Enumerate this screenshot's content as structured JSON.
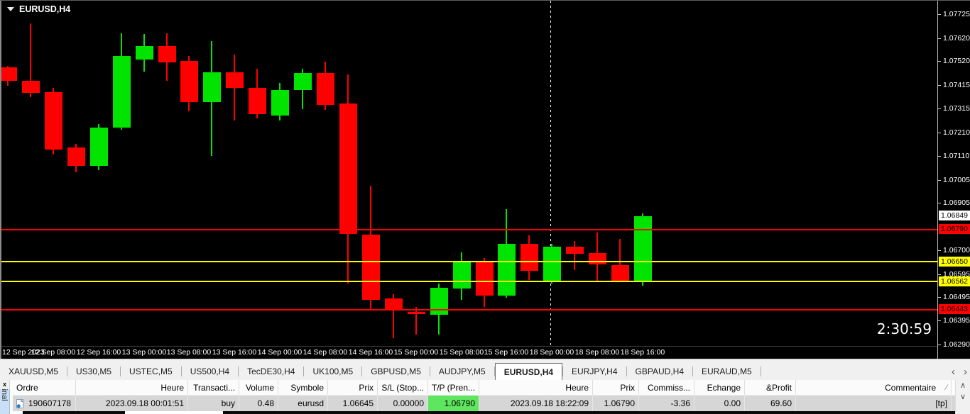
{
  "chart": {
    "title": "EURUSD,H4",
    "timer": "2:30:59"
  },
  "chart_data": {
    "type": "candlestick",
    "symbol": "EURUSD",
    "timeframe": "H4",
    "colors": {
      "bull": "#00e400",
      "bear": "#ff0000",
      "background": "#000000",
      "axis_text": "#ffffff"
    },
    "current_price": "1.06849",
    "levels": [
      {
        "price": 1.0679,
        "label": "1.06790",
        "color": "#ff0000",
        "width": 1.5
      },
      {
        "price": 1.0665,
        "label": "1.06650",
        "color": "#ffff00",
        "width": 2
      },
      {
        "price": 1.06562,
        "label": "1.06562",
        "color": "#ffff00",
        "width": 2
      },
      {
        "price": 1.06443,
        "label": "1.06443",
        "color": "#ff0000",
        "width": 1.5
      }
    ],
    "y_ticks": [
      "1.07725",
      "1.07620",
      "1.07520",
      "1.07415",
      "1.07315",
      "1.07210",
      "1.07110",
      "1.07005",
      "1.06905",
      "1.06700",
      "1.06595",
      "1.06495",
      "1.06395",
      "1.06290"
    ],
    "x_labels": [
      "12 Sep 2023",
      "12 Sep 08:00",
      "12 Sep 16:00",
      "13 Sep 00:00",
      "13 Sep 08:00",
      "13 Sep 16:00",
      "14 Sep 00:00",
      "14 Sep 08:00",
      "14 Sep 16:00",
      "15 Sep 00:00",
      "15 Sep 08:00",
      "15 Sep 16:00",
      "18 Sep 00:00",
      "18 Sep 08:00",
      "18 Sep 16:00"
    ],
    "separator_index": 24,
    "candles": [
      {
        "t": "12 Sep 00:00",
        "o": 1.07495,
        "h": 1.075,
        "l": 1.07413,
        "c": 1.07435
      },
      {
        "t": "12 Sep 04:00",
        "o": 1.07435,
        "h": 1.07684,
        "l": 1.07365,
        "c": 1.07383
      },
      {
        "t": "12 Sep 08:00",
        "o": 1.07386,
        "h": 1.07404,
        "l": 1.07115,
        "c": 1.07137
      },
      {
        "t": "12 Sep 12:00",
        "o": 1.07146,
        "h": 1.07161,
        "l": 1.07039,
        "c": 1.07064
      },
      {
        "t": "12 Sep 16:00",
        "o": 1.07064,
        "h": 1.07246,
        "l": 1.07048,
        "c": 1.07231
      },
      {
        "t": "12 Sep 20:00",
        "o": 1.07231,
        "h": 1.07641,
        "l": 1.07222,
        "c": 1.07544
      },
      {
        "t": "13 Sep 00:00",
        "o": 1.07526,
        "h": 1.07638,
        "l": 1.07474,
        "c": 1.07587
      },
      {
        "t": "13 Sep 04:00",
        "o": 1.07587,
        "h": 1.07641,
        "l": 1.07435,
        "c": 1.07514
      },
      {
        "t": "13 Sep 08:00",
        "o": 1.0752,
        "h": 1.07544,
        "l": 1.07304,
        "c": 1.07343
      },
      {
        "t": "13 Sep 12:00",
        "o": 1.07343,
        "h": 1.07608,
        "l": 1.07109,
        "c": 1.07471
      },
      {
        "t": "13 Sep 16:00",
        "o": 1.07471,
        "h": 1.0755,
        "l": 1.07261,
        "c": 1.07404
      },
      {
        "t": "13 Sep 20:00",
        "o": 1.07404,
        "h": 1.07486,
        "l": 1.07273,
        "c": 1.07289
      },
      {
        "t": "14 Sep 00:00",
        "o": 1.07283,
        "h": 1.07425,
        "l": 1.07264,
        "c": 1.07395
      },
      {
        "t": "14 Sep 04:00",
        "o": 1.07395,
        "h": 1.07486,
        "l": 1.07313,
        "c": 1.07468
      },
      {
        "t": "14 Sep 08:00",
        "o": 1.07468,
        "h": 1.07517,
        "l": 1.0731,
        "c": 1.07331
      },
      {
        "t": "14 Sep 12:00",
        "o": 1.07337,
        "h": 1.07462,
        "l": 1.06553,
        "c": 1.06769
      },
      {
        "t": "14 Sep 16:00",
        "o": 1.06766,
        "h": 1.06979,
        "l": 1.0644,
        "c": 1.06483
      },
      {
        "t": "14 Sep 20:00",
        "o": 1.06489,
        "h": 1.06507,
        "l": 1.06316,
        "c": 1.06443
      },
      {
        "t": "15 Sep 00:00",
        "o": 1.06431,
        "h": 1.06452,
        "l": 1.06331,
        "c": 1.06422
      },
      {
        "t": "15 Sep 04:00",
        "o": 1.06419,
        "h": 1.06553,
        "l": 1.06331,
        "c": 1.06535
      },
      {
        "t": "15 Sep 08:00",
        "o": 1.06532,
        "h": 1.0669,
        "l": 1.06483,
        "c": 1.06647
      },
      {
        "t": "15 Sep 12:00",
        "o": 1.06647,
        "h": 1.06665,
        "l": 1.06453,
        "c": 1.06501
      },
      {
        "t": "15 Sep 16:00",
        "o": 1.06501,
        "h": 1.06878,
        "l": 1.06492,
        "c": 1.06726
      },
      {
        "t": "15 Sep 20:00",
        "o": 1.06726,
        "h": 1.06763,
        "l": 1.06568,
        "c": 1.06608
      },
      {
        "t": "18 Sep 00:00",
        "o": 1.06562,
        "h": 1.06726,
        "l": 1.06553,
        "c": 1.06714
      },
      {
        "t": "18 Sep 04:00",
        "o": 1.06714,
        "h": 1.06738,
        "l": 1.06614,
        "c": 1.06684
      },
      {
        "t": "18 Sep 08:00",
        "o": 1.06687,
        "h": 1.06775,
        "l": 1.06565,
        "c": 1.06638
      },
      {
        "t": "18 Sep 12:00",
        "o": 1.06635,
        "h": 1.06747,
        "l": 1.06562,
        "c": 1.06562
      },
      {
        "t": "18 Sep 16:00",
        "o": 1.06562,
        "h": 1.0686,
        "l": 1.06544,
        "c": 1.06848
      }
    ]
  },
  "tabs": {
    "items": [
      "XAUUSD,M5",
      "US30,M5",
      "USTEC,M5",
      "US500,H4",
      "TecDE30,H4",
      "UK100,M5",
      "GBPUSD,M5",
      "AUDJPY,M5",
      "EURUSD,H4",
      "EURJPY,H4",
      "GBPAUD,H4",
      "EURAUD,M5"
    ],
    "active": "EURUSD,H4",
    "nav_left": "‹",
    "nav_right": "›"
  },
  "terminal": {
    "panel_label": "Terminal",
    "close_label": "x",
    "header_slash": "∕",
    "scroll_up": "∧",
    "scroll_down": "∨",
    "columns": [
      "Ordre",
      "Heure",
      "Transacti...",
      "Volume",
      "Symbole",
      "Prix",
      "S/L (Stop...",
      "T/P (Pren...",
      "Heure",
      "Prix",
      "Commiss...",
      "Echange",
      "&Profit",
      "Commentaire"
    ],
    "row": {
      "ordre": "190607178",
      "heure_open": "2023.09.18 00:01:51",
      "transaction": "buy",
      "volume": "0.48",
      "symbole": "eurusd",
      "prix_open": "1.06645",
      "sl": "0.00000",
      "tp": "1.06790",
      "heure_close": "2023.09.18 18:22:09",
      "prix_close": "1.06790",
      "commission": "-3.36",
      "echange": "0.00",
      "profit": "69.60",
      "commentaire": "[tp]",
      "tp_highlight": "#5ee65e"
    }
  }
}
